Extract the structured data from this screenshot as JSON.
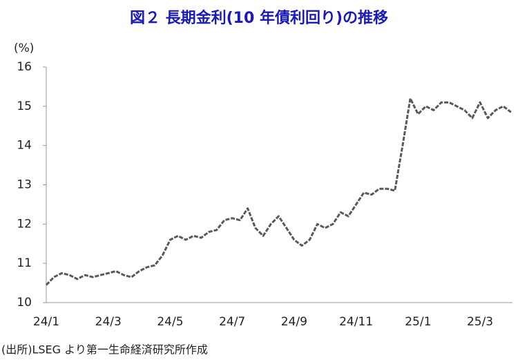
{
  "chart_data": {
    "type": "line",
    "title": "図２ 長期金利(10 年債利回り)の推移",
    "y_label": "(%)",
    "source": "(出所)LSEG より第一生命経済研究所作成",
    "categories": [
      "24/1",
      null,
      null,
      null,
      null,
      null,
      null,
      null,
      "24/3",
      null,
      null,
      null,
      null,
      null,
      null,
      null,
      "24/5",
      null,
      null,
      null,
      null,
      null,
      null,
      null,
      "24/7",
      null,
      null,
      null,
      null,
      null,
      null,
      null,
      "24/9",
      null,
      null,
      null,
      null,
      null,
      null,
      null,
      "24/11",
      null,
      null,
      null,
      null,
      null,
      null,
      null,
      "25/1",
      null,
      null,
      null,
      null,
      null,
      null,
      null,
      "25/3",
      null,
      null,
      null,
      null
    ],
    "values": [
      10.45,
      10.65,
      10.75,
      10.7,
      10.6,
      10.7,
      10.65,
      10.7,
      10.75,
      10.8,
      10.7,
      10.65,
      10.8,
      10.9,
      10.95,
      11.2,
      11.6,
      11.7,
      11.6,
      11.7,
      11.65,
      11.8,
      11.85,
      12.1,
      12.15,
      12.1,
      12.4,
      11.9,
      11.7,
      12.0,
      12.2,
      11.9,
      11.6,
      11.45,
      11.6,
      12.0,
      11.9,
      12.0,
      12.3,
      12.2,
      12.5,
      12.8,
      12.75,
      12.9,
      12.9,
      12.85,
      14.0,
      15.2,
      14.8,
      15.0,
      14.9,
      15.1,
      15.1,
      15.0,
      14.9,
      14.7,
      15.1,
      14.7,
      14.9,
      15.0,
      14.85
    ],
    "color": "#595959",
    "ylim": [
      10,
      16
    ],
    "yticks": [
      10,
      11,
      12,
      13,
      14,
      15,
      16
    ],
    "grid": false
  }
}
